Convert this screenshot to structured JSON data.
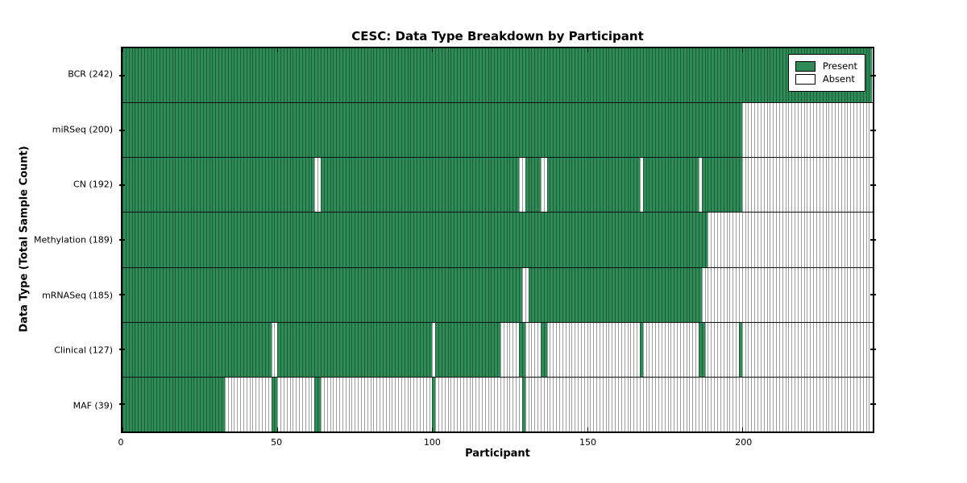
{
  "chart_data": {
    "type": "heatmap",
    "title": "CESC: Data Type Breakdown by Participant",
    "xlabel": "Participant",
    "ylabel": "Data Type (Total Sample Count)",
    "x_range": [
      0,
      242
    ],
    "n_participants": 242,
    "x_ticks": [
      0,
      50,
      100,
      150,
      200
    ],
    "grid": false,
    "legend_position": "upper right",
    "colors": {
      "present_fill": "#2e8b57",
      "present_edge": "#1f5c38",
      "absent_fill": "#ffffff",
      "absent_edge": "#9c9c9c",
      "axis_border": "#000000"
    },
    "legend": [
      {
        "label": "Present",
        "color": "#2e8b57"
      },
      {
        "label": "Absent",
        "color": "#ffffff"
      }
    ],
    "rows": [
      {
        "label": "BCR (242)",
        "count": 242,
        "present_ranges": [
          [
            0,
            241
          ]
        ]
      },
      {
        "label": "miRSeq (200)",
        "count": 200,
        "present_ranges": [
          [
            0,
            199
          ]
        ]
      },
      {
        "label": "CN (192)",
        "count": 192,
        "present_ranges": [
          [
            0,
            61
          ],
          [
            64,
            127
          ],
          [
            130,
            134
          ],
          [
            137,
            166
          ],
          [
            168,
            185
          ],
          [
            187,
            199
          ]
        ]
      },
      {
        "label": "Methylation (189)",
        "count": 189,
        "present_ranges": [
          [
            0,
            188
          ]
        ]
      },
      {
        "label": "mRNASeq (185)",
        "count": 185,
        "present_ranges": [
          [
            0,
            128
          ],
          [
            131,
            186
          ]
        ]
      },
      {
        "label": "Clinical (127)",
        "count": 127,
        "present_ranges": [
          [
            0,
            47
          ],
          [
            50,
            99
          ],
          [
            101,
            121
          ],
          [
            128,
            129
          ],
          [
            135,
            136
          ],
          [
            167,
            167
          ],
          [
            186,
            187
          ],
          [
            199,
            199
          ]
        ]
      },
      {
        "label": "MAF (39)",
        "count": 39,
        "present_ranges": [
          [
            0,
            32
          ],
          [
            48,
            49
          ],
          [
            62,
            63
          ],
          [
            100,
            100
          ],
          [
            129,
            129
          ]
        ]
      }
    ]
  }
}
